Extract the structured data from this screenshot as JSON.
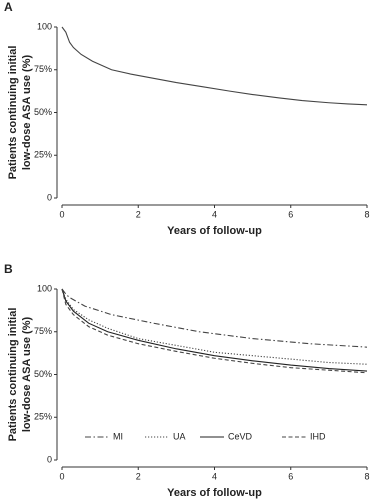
{
  "chart_data": [
    {
      "type": "line",
      "panel_label": "A",
      "x_label": "Years of follow-up",
      "y_label": [
        "Patients continuing initial",
        "low-dose ASA use (%)"
      ],
      "xlim": [
        0,
        8
      ],
      "xticks": [
        0,
        2,
        4,
        6,
        8
      ],
      "ylim": [
        0,
        100
      ],
      "yticks": [
        0,
        {
          "value": 25,
          "label": "25%"
        },
        {
          "value": 50,
          "label": "50%"
        },
        {
          "value": 75,
          "label": "75%"
        },
        100
      ],
      "series": [
        {
          "color": "#444444",
          "dash": "solid",
          "x": [
            0,
            0.1,
            0.15,
            0.2,
            0.3,
            0.5,
            0.8,
            1.3,
            1.8,
            2.4,
            3,
            3.7,
            4.4,
            5,
            5.7,
            6.3,
            7,
            7.5,
            8
          ],
          "values": [
            100,
            97,
            94,
            91,
            88,
            84,
            80,
            75,
            72.5,
            70,
            67.5,
            65,
            62.5,
            60.5,
            58.5,
            57,
            55.7,
            55,
            54.5
          ]
        }
      ]
    },
    {
      "type": "line",
      "panel_label": "B",
      "x_label": "Years of follow-up",
      "y_label": [
        "Patients continuing initial",
        "low-dose ASA use (%)"
      ],
      "xlim": [
        0,
        8
      ],
      "xticks": [
        0,
        2,
        4,
        6,
        8
      ],
      "ylim": [
        0,
        100
      ],
      "yticks": [
        0,
        {
          "value": 25,
          "label": "25%"
        },
        {
          "value": 50,
          "label": "50%"
        },
        {
          "value": 75,
          "label": "75%"
        },
        100
      ],
      "series": [
        {
          "name": "MI",
          "color": "#444444",
          "dash": "dashdot",
          "x": [
            0,
            0.1,
            0.2,
            0.6,
            1.3,
            2.4,
            3.6,
            5,
            6.5,
            8
          ],
          "values": [
            100,
            97,
            95,
            90,
            85,
            80,
            75,
            71,
            68,
            66
          ]
        },
        {
          "name": "UA",
          "color": "#444444",
          "dash": "dotted",
          "x": [
            0,
            0.1,
            0.3,
            0.7,
            1.2,
            2,
            3,
            4,
            5,
            6,
            7,
            8
          ],
          "values": [
            100,
            94,
            88,
            82,
            77,
            71,
            67,
            63,
            61,
            59,
            57,
            56
          ]
        },
        {
          "name": "CeVD",
          "color": "#222222",
          "dash": "solid",
          "x": [
            0,
            0.1,
            0.3,
            0.7,
            1.2,
            2,
            3,
            4,
            5,
            6,
            7,
            8
          ],
          "values": [
            100,
            93,
            87,
            80,
            75,
            70,
            65,
            61,
            58,
            55.5,
            53.5,
            52
          ]
        },
        {
          "name": "IHD",
          "color": "#444444",
          "dash": "dashed",
          "x": [
            0,
            0.1,
            0.3,
            0.7,
            1.2,
            2,
            3,
            4,
            5,
            6,
            7,
            8
          ],
          "values": [
            100,
            91,
            85,
            78,
            73,
            68,
            63.5,
            59.5,
            56.5,
            54,
            52.5,
            51
          ]
        }
      ]
    }
  ]
}
